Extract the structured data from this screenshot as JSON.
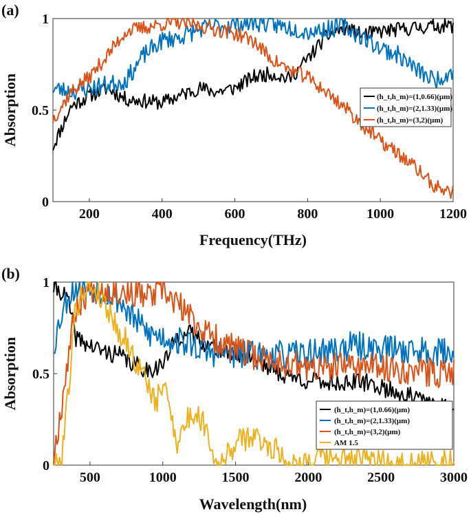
{
  "colors": {
    "black": "#000000",
    "blue": "#0072BD",
    "orange": "#D95319",
    "yellow": "#EDB120"
  },
  "chart_data": [
    {
      "panel_label": "(a)",
      "type": "line",
      "xlabel": "Frequency(THz)",
      "ylabel": "Absorption",
      "xlim": [
        100,
        1200
      ],
      "ylim": [
        0,
        1
      ],
      "xticks": [
        "200",
        "400",
        "600",
        "800",
        "1000",
        "1200"
      ],
      "yticks": [
        "0",
        "0.5",
        "1"
      ],
      "legend_position": "right",
      "series": [
        {
          "name": "(h_t,h_m)=(1,0.66)(µm)",
          "color": "#000000",
          "noise": 0.04,
          "seed": 11,
          "x": [
            100,
            150,
            200,
            250,
            300,
            350,
            400,
            450,
            500,
            550,
            600,
            650,
            700,
            750,
            800,
            850,
            900,
            950,
            1000,
            1050,
            1100,
            1150,
            1200
          ],
          "y": [
            0.3,
            0.52,
            0.58,
            0.62,
            0.56,
            0.55,
            0.54,
            0.58,
            0.62,
            0.6,
            0.62,
            0.68,
            0.7,
            0.67,
            0.78,
            0.9,
            0.95,
            0.91,
            0.93,
            0.94,
            0.95,
            0.96,
            0.96
          ]
        },
        {
          "name": "(h_t,h_m)=(2,1.33)(µm)",
          "color": "#0072BD",
          "noise": 0.05,
          "seed": 23,
          "x": [
            100,
            150,
            200,
            250,
            300,
            350,
            400,
            450,
            500,
            550,
            600,
            650,
            700,
            750,
            800,
            850,
            900,
            950,
            1000,
            1050,
            1100,
            1150,
            1200
          ],
          "y": [
            0.62,
            0.6,
            0.62,
            0.64,
            0.66,
            0.8,
            0.88,
            0.9,
            0.94,
            0.96,
            0.97,
            0.98,
            0.97,
            0.95,
            0.93,
            0.94,
            0.96,
            0.9,
            0.84,
            0.8,
            0.72,
            0.66,
            0.72
          ]
        },
        {
          "name": "(h_t,h_m)=(3,2)(µm)",
          "color": "#D95319",
          "noise": 0.04,
          "seed": 37,
          "x": [
            100,
            150,
            200,
            250,
            300,
            350,
            400,
            450,
            500,
            550,
            600,
            650,
            700,
            750,
            800,
            850,
            900,
            950,
            1000,
            1050,
            1100,
            1150,
            1200
          ],
          "y": [
            0.45,
            0.6,
            0.68,
            0.8,
            0.93,
            0.95,
            0.97,
            0.98,
            0.96,
            0.94,
            0.92,
            0.88,
            0.78,
            0.72,
            0.68,
            0.6,
            0.52,
            0.42,
            0.33,
            0.26,
            0.18,
            0.08,
            0.05
          ]
        }
      ]
    },
    {
      "panel_label": "(b)",
      "type": "line",
      "xlabel": "Wavelength(nm)",
      "ylabel": "Absorption",
      "xlim": [
        250,
        3000
      ],
      "ylim": [
        0,
        1
      ],
      "xticks": [
        "500",
        "1000",
        "1500",
        "2000",
        "2500",
        "3000"
      ],
      "yticks": [
        "0",
        "0.5",
        "1"
      ],
      "legend_position": "bottom-right",
      "series": [
        {
          "name": "(h_t,h_m)=(1,0.66)(µm)",
          "color": "#000000",
          "noise": 0.05,
          "seed": 41,
          "x": [
            250,
            300,
            350,
            400,
            500,
            600,
            700,
            800,
            900,
            1000,
            1100,
            1200,
            1300,
            1400,
            1600,
            1800,
            2000,
            2200,
            2400,
            2600,
            2800,
            3000
          ],
          "y": [
            0.97,
            0.95,
            0.9,
            0.7,
            0.65,
            0.62,
            0.6,
            0.55,
            0.52,
            0.55,
            0.7,
            0.72,
            0.66,
            0.62,
            0.6,
            0.5,
            0.46,
            0.45,
            0.45,
            0.4,
            0.35,
            0.3
          ]
        },
        {
          "name": "(h_t,h_m)=(2,1.33)(µm)",
          "color": "#0072BD",
          "noise": 0.08,
          "seed": 53,
          "x": [
            250,
            300,
            350,
            400,
            450,
            500,
            600,
            700,
            800,
            900,
            1000,
            1100,
            1200,
            1300,
            1500,
            1700,
            1900,
            2100,
            2300,
            2500,
            2700,
            2900,
            3000
          ],
          "y": [
            0.65,
            0.82,
            0.93,
            0.97,
            0.98,
            0.97,
            0.95,
            0.9,
            0.8,
            0.72,
            0.7,
            0.68,
            0.66,
            0.62,
            0.6,
            0.6,
            0.6,
            0.62,
            0.65,
            0.64,
            0.63,
            0.62,
            0.62
          ]
        },
        {
          "name": "(h_t,h_m)=(3,2)(µm)",
          "color": "#D95319",
          "noise": 0.08,
          "seed": 67,
          "x": [
            250,
            300,
            350,
            400,
            500,
            600,
            700,
            800,
            900,
            1000,
            1100,
            1200,
            1300,
            1500,
            1700,
            1900,
            2100,
            2300,
            2500,
            2700,
            2900,
            3000
          ],
          "y": [
            0.05,
            0.3,
            0.6,
            0.85,
            0.97,
            0.96,
            0.95,
            0.94,
            0.92,
            0.95,
            0.88,
            0.8,
            0.72,
            0.63,
            0.58,
            0.55,
            0.52,
            0.55,
            0.53,
            0.52,
            0.5,
            0.52
          ]
        },
        {
          "name": "AM 1.5",
          "color": "#EDB120",
          "noise": 0.07,
          "seed": 79,
          "x": [
            250,
            300,
            350,
            400,
            450,
            500,
            550,
            600,
            650,
            700,
            750,
            800,
            850,
            900,
            950,
            1000,
            1050,
            1100,
            1150,
            1200,
            1250,
            1300,
            1350,
            1400,
            1500,
            1600,
            1700,
            1800,
            1850,
            1900,
            2000,
            2100,
            2200,
            2300,
            2400,
            2500,
            2600,
            3000
          ],
          "y": [
            0.0,
            0.02,
            0.4,
            0.85,
            0.95,
            0.98,
            0.95,
            0.88,
            0.82,
            0.72,
            0.68,
            0.58,
            0.52,
            0.45,
            0.32,
            0.45,
            0.32,
            0.12,
            0.22,
            0.28,
            0.26,
            0.22,
            0.04,
            0.0,
            0.12,
            0.16,
            0.12,
            0.08,
            0.01,
            0.0,
            0.03,
            0.04,
            0.03,
            0.03,
            0.02,
            0.02,
            0.01,
            0.01
          ]
        }
      ]
    }
  ]
}
